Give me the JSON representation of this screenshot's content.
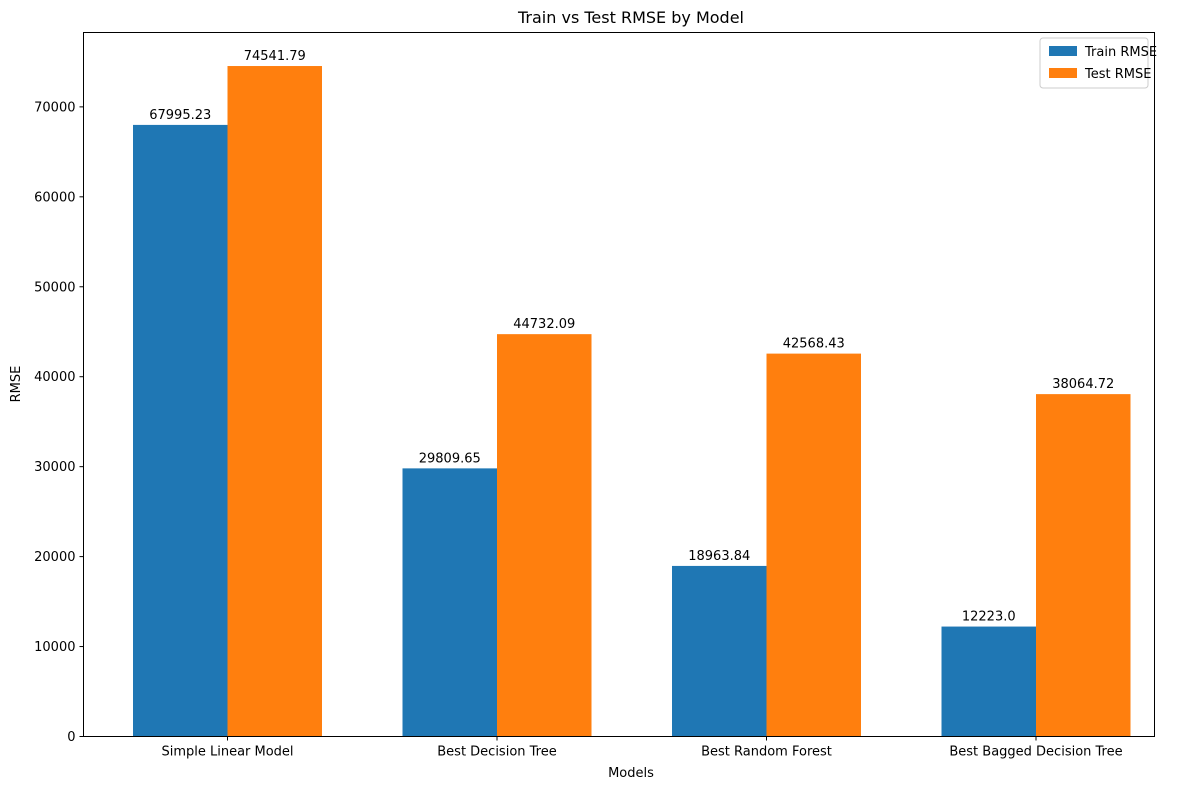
{
  "chart_data": {
    "type": "bar",
    "title": "Train vs Test RMSE by Model",
    "xlabel": "Models",
    "ylabel": "RMSE",
    "categories": [
      "Simple Linear Model",
      "Best Decision Tree",
      "Best Random Forest",
      "Best Bagged Decision Tree"
    ],
    "series": [
      {
        "name": "Train RMSE",
        "color": "#1f77b4",
        "values": [
          67995.23,
          29809.65,
          18963.84,
          12223.0
        ],
        "labels": [
          "67995.23",
          "29809.65",
          "18963.84",
          "12223.0"
        ]
      },
      {
        "name": "Test RMSE",
        "color": "#ff7f0e",
        "values": [
          74541.79,
          44732.09,
          42568.43,
          38064.72
        ],
        "labels": [
          "74541.79",
          "44732.09",
          "42568.43",
          "38064.72"
        ]
      }
    ],
    "ylim": [
      0,
      78269
    ],
    "yticks": [
      0,
      10000,
      20000,
      30000,
      40000,
      50000,
      60000,
      70000
    ],
    "grid": false,
    "legend_position": "top-right"
  }
}
